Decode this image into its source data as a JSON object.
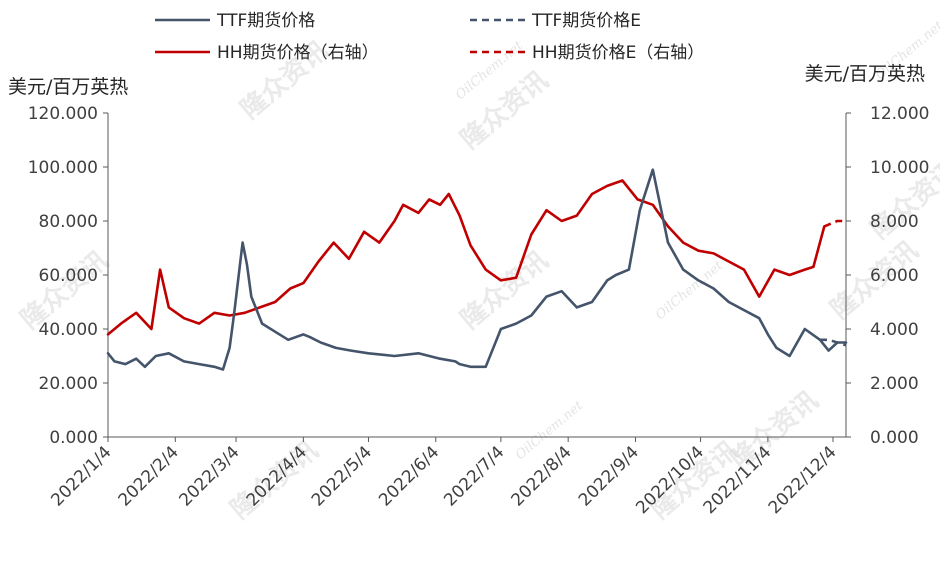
{
  "chart_data": {
    "type": "line",
    "title": "",
    "y_left": {
      "label": "美元/百万英热",
      "min": 0,
      "max": 120,
      "step": 20,
      "tick_labels": [
        "0.000",
        "20.000",
        "40.000",
        "60.000",
        "80.000",
        "100.000",
        "120.000"
      ]
    },
    "y_right": {
      "label": "美元/百万英热",
      "min": 0,
      "max": 12,
      "step": 2,
      "tick_labels": [
        "0.000",
        "2.000",
        "4.000",
        "6.000",
        "8.000",
        "10.000",
        "12.000"
      ]
    },
    "x_range": [
      "2022-01-04",
      "2022-12-10"
    ],
    "x_tick_dates": [
      "2022-01-04",
      "2022-02-04",
      "2022-03-04",
      "2022-04-04",
      "2022-05-04",
      "2022-06-04",
      "2022-07-04",
      "2022-08-04",
      "2022-09-04",
      "2022-10-04",
      "2022-11-04",
      "2022-12-04"
    ],
    "x_tick_labels": [
      "2022/1/4",
      "2022/2/4",
      "2022/3/4",
      "2022/4/4",
      "2022/5/4",
      "2022/6/4",
      "2022/7/4",
      "2022/8/4",
      "2022/9/4",
      "2022/10/4",
      "2022/11/4",
      "2022/12/4"
    ],
    "legend_position": "top",
    "series": [
      {
        "name": "TTF期货价格",
        "axis": "left",
        "style": "solid",
        "color": "#44546a",
        "x": [
          "2022-01-04",
          "2022-01-07",
          "2022-01-12",
          "2022-01-17",
          "2022-01-21",
          "2022-01-26",
          "2022-02-01",
          "2022-02-08",
          "2022-02-15",
          "2022-02-22",
          "2022-02-26",
          "2022-03-01",
          "2022-03-03",
          "2022-03-07",
          "2022-03-09",
          "2022-03-11",
          "2022-03-16",
          "2022-03-22",
          "2022-03-28",
          "2022-04-04",
          "2022-04-07",
          "2022-04-12",
          "2022-04-19",
          "2022-04-26",
          "2022-05-04",
          "2022-05-16",
          "2022-05-27",
          "2022-06-06",
          "2022-06-13",
          "2022-06-15",
          "2022-06-20",
          "2022-06-27",
          "2022-07-04",
          "2022-07-11",
          "2022-07-18",
          "2022-07-25",
          "2022-08-01",
          "2022-08-08",
          "2022-08-15",
          "2022-08-22",
          "2022-08-26",
          "2022-09-01",
          "2022-09-06",
          "2022-09-12",
          "2022-09-19",
          "2022-09-26",
          "2022-10-03",
          "2022-10-10",
          "2022-10-17",
          "2022-10-24",
          "2022-10-31",
          "2022-11-04",
          "2022-11-08",
          "2022-11-14",
          "2022-11-21",
          "2022-11-28",
          "2022-12-02",
          "2022-12-06",
          "2022-12-10"
        ],
        "y": [
          31,
          28,
          27,
          29,
          26,
          30,
          31,
          28,
          27,
          26,
          25,
          33,
          45,
          72,
          64,
          52,
          42,
          39,
          36,
          38,
          37,
          35,
          33,
          32,
          31,
          30,
          31,
          29,
          28,
          27,
          26,
          26,
          40,
          42,
          45,
          52,
          54,
          48,
          50,
          58,
          60,
          62,
          84,
          99,
          72,
          62,
          58,
          55,
          50,
          47,
          44,
          38,
          33,
          30,
          40,
          36,
          32,
          35,
          35
        ]
      },
      {
        "name": "TTF期货价格E",
        "axis": "left",
        "style": "dashed",
        "color": "#44546a",
        "x": [
          "2022-11-28",
          "2022-12-02",
          "2022-12-06",
          "2022-12-10"
        ],
        "y": [
          36,
          36,
          35,
          34
        ]
      },
      {
        "name": "HH期货价格（右轴）",
        "axis": "right",
        "style": "solid",
        "color": "#c00000",
        "x": [
          "2022-01-04",
          "2022-01-10",
          "2022-01-17",
          "2022-01-24",
          "2022-01-28",
          "2022-02-01",
          "2022-02-08",
          "2022-02-15",
          "2022-02-22",
          "2022-03-01",
          "2022-03-08",
          "2022-03-15",
          "2022-03-22",
          "2022-03-29",
          "2022-04-04",
          "2022-04-11",
          "2022-04-18",
          "2022-04-25",
          "2022-05-02",
          "2022-05-09",
          "2022-05-16",
          "2022-05-20",
          "2022-05-27",
          "2022-06-01",
          "2022-06-06",
          "2022-06-10",
          "2022-06-15",
          "2022-06-20",
          "2022-06-27",
          "2022-07-04",
          "2022-07-11",
          "2022-07-18",
          "2022-07-25",
          "2022-08-01",
          "2022-08-08",
          "2022-08-15",
          "2022-08-22",
          "2022-08-29",
          "2022-09-05",
          "2022-09-12",
          "2022-09-19",
          "2022-09-26",
          "2022-10-03",
          "2022-10-10",
          "2022-10-17",
          "2022-10-24",
          "2022-10-31",
          "2022-11-07",
          "2022-11-14",
          "2022-11-21",
          "2022-11-25",
          "2022-11-30"
        ],
        "y": [
          3.8,
          4.2,
          4.6,
          4.0,
          6.2,
          4.8,
          4.4,
          4.2,
          4.6,
          4.5,
          4.6,
          4.8,
          5.0,
          5.5,
          5.7,
          6.5,
          7.2,
          6.6,
          7.6,
          7.2,
          8.0,
          8.6,
          8.3,
          8.8,
          8.6,
          9.0,
          8.2,
          7.1,
          6.2,
          5.8,
          5.9,
          7.5,
          8.4,
          8.0,
          8.2,
          9.0,
          9.3,
          9.5,
          8.8,
          8.6,
          7.8,
          7.2,
          6.9,
          6.8,
          6.5,
          6.2,
          5.2,
          6.2,
          6.0,
          6.2,
          6.3,
          7.8
        ]
      },
      {
        "name": "HH期货价格E（右轴）",
        "axis": "right",
        "style": "dashed",
        "color": "#c00000",
        "x": [
          "2022-11-30",
          "2022-12-03",
          "2022-12-06",
          "2022-12-10"
        ],
        "y": [
          7.8,
          7.9,
          8.0,
          8.0
        ]
      }
    ]
  },
  "legend": [
    {
      "label": "TTF期货价格",
      "style": "solid",
      "color": "#44546a"
    },
    {
      "label": "TTF期货价格E",
      "style": "dashed",
      "color": "#44546a"
    },
    {
      "label": "HH期货价格（右轴）",
      "style": "solid",
      "color": "#c00000"
    },
    {
      "label": "HH期货价格E（右轴）",
      "style": "dashed",
      "color": "#c00000"
    }
  ],
  "watermark": {
    "brand": "隆众资讯",
    "site": "OilChem.net"
  }
}
